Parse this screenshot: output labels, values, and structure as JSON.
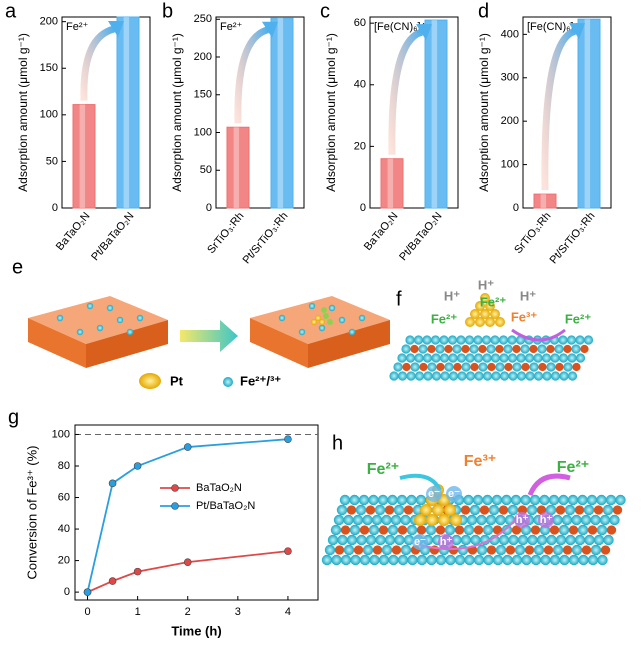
{
  "chart_data": [
    {
      "type": "bar",
      "panel": "a",
      "ylabel": "Adsorption amount (μmol g⁻¹)",
      "annotation": "Fe²⁺",
      "categories": [
        "BaTaO₂N",
        "Pt/BaTaO₂N"
      ],
      "values": [
        111,
        205
      ],
      "colors": [
        "#f07070",
        "#4fb0ee"
      ],
      "ylim": [
        0,
        205
      ],
      "yticks": [
        0,
        50,
        100,
        150,
        200
      ]
    },
    {
      "type": "bar",
      "panel": "b",
      "ylabel": "Adsorption amount (μmol g⁻¹)",
      "annotation": "Fe²⁺",
      "categories": [
        "SrTiO₃:Rh",
        "Pt/SrTiO₃:Rh"
      ],
      "values": [
        107,
        252
      ],
      "colors": [
        "#f07070",
        "#4fb0ee"
      ],
      "ylim": [
        0,
        253
      ],
      "yticks": [
        0,
        50,
        100,
        150,
        200,
        250
      ]
    },
    {
      "type": "bar",
      "panel": "c",
      "ylabel": "Adsorption amount (μmol g⁻¹)",
      "annotation": "[Fe(CN)₆]⁴⁻",
      "categories": [
        "BaTaO₂N",
        "Pt/BaTaO₂N"
      ],
      "values": [
        16,
        61
      ],
      "colors": [
        "#f07070",
        "#4fb0ee"
      ],
      "ylim": [
        0,
        62
      ],
      "yticks": [
        0,
        20,
        40,
        60
      ]
    },
    {
      "type": "bar",
      "panel": "d",
      "ylabel": "Adsorption amount (μmol g⁻¹)",
      "annotation": "[Fe(CN)₆]⁴⁻",
      "categories": [
        "SrTiO₃:Rh",
        "Pt/SrTiO₃:Rh"
      ],
      "values": [
        32,
        435
      ],
      "colors": [
        "#f07070",
        "#4fb0ee"
      ],
      "ylim": [
        0,
        440
      ],
      "yticks": [
        0,
        100,
        200,
        300,
        400
      ]
    },
    {
      "type": "line",
      "panel": "g",
      "xlabel": "Time (h)",
      "ylabel": "Conversion of Fe³⁺ (%)",
      "x": [
        0,
        0.5,
        1,
        2,
        4
      ],
      "series": [
        {
          "name": "BaTaO₂N",
          "color": "#e04848",
          "values": [
            0,
            7,
            13,
            19,
            26
          ]
        },
        {
          "name": "Pt/BaTaO₂N",
          "color": "#2a9fe0",
          "values": [
            0,
            69,
            80,
            92,
            97
          ]
        }
      ],
      "xlim": [
        -0.25,
        4.6
      ],
      "xticks": [
        0,
        1,
        2,
        3,
        4
      ],
      "ylim": [
        -5,
        106
      ],
      "yticks": [
        0,
        20,
        40,
        60,
        80,
        100
      ],
      "reference_line": 100
    }
  ],
  "illustrations": {
    "e": {
      "panel": "e",
      "legend": [
        "Pt",
        "Fe²⁺/³⁺"
      ]
    },
    "f": {
      "panel": "f",
      "labels": [
        "H⁺",
        "H⁺",
        "Fe²⁺",
        "H⁺",
        "Fe²⁺",
        "Fe³⁺",
        "Fe²⁺"
      ]
    },
    "h": {
      "panel": "h",
      "labels": [
        "Fe²⁺",
        "Fe³⁺",
        "Fe²⁺",
        "e⁻",
        "e⁻",
        "e⁻",
        "h⁺",
        "h⁺",
        "h⁺"
      ]
    }
  }
}
